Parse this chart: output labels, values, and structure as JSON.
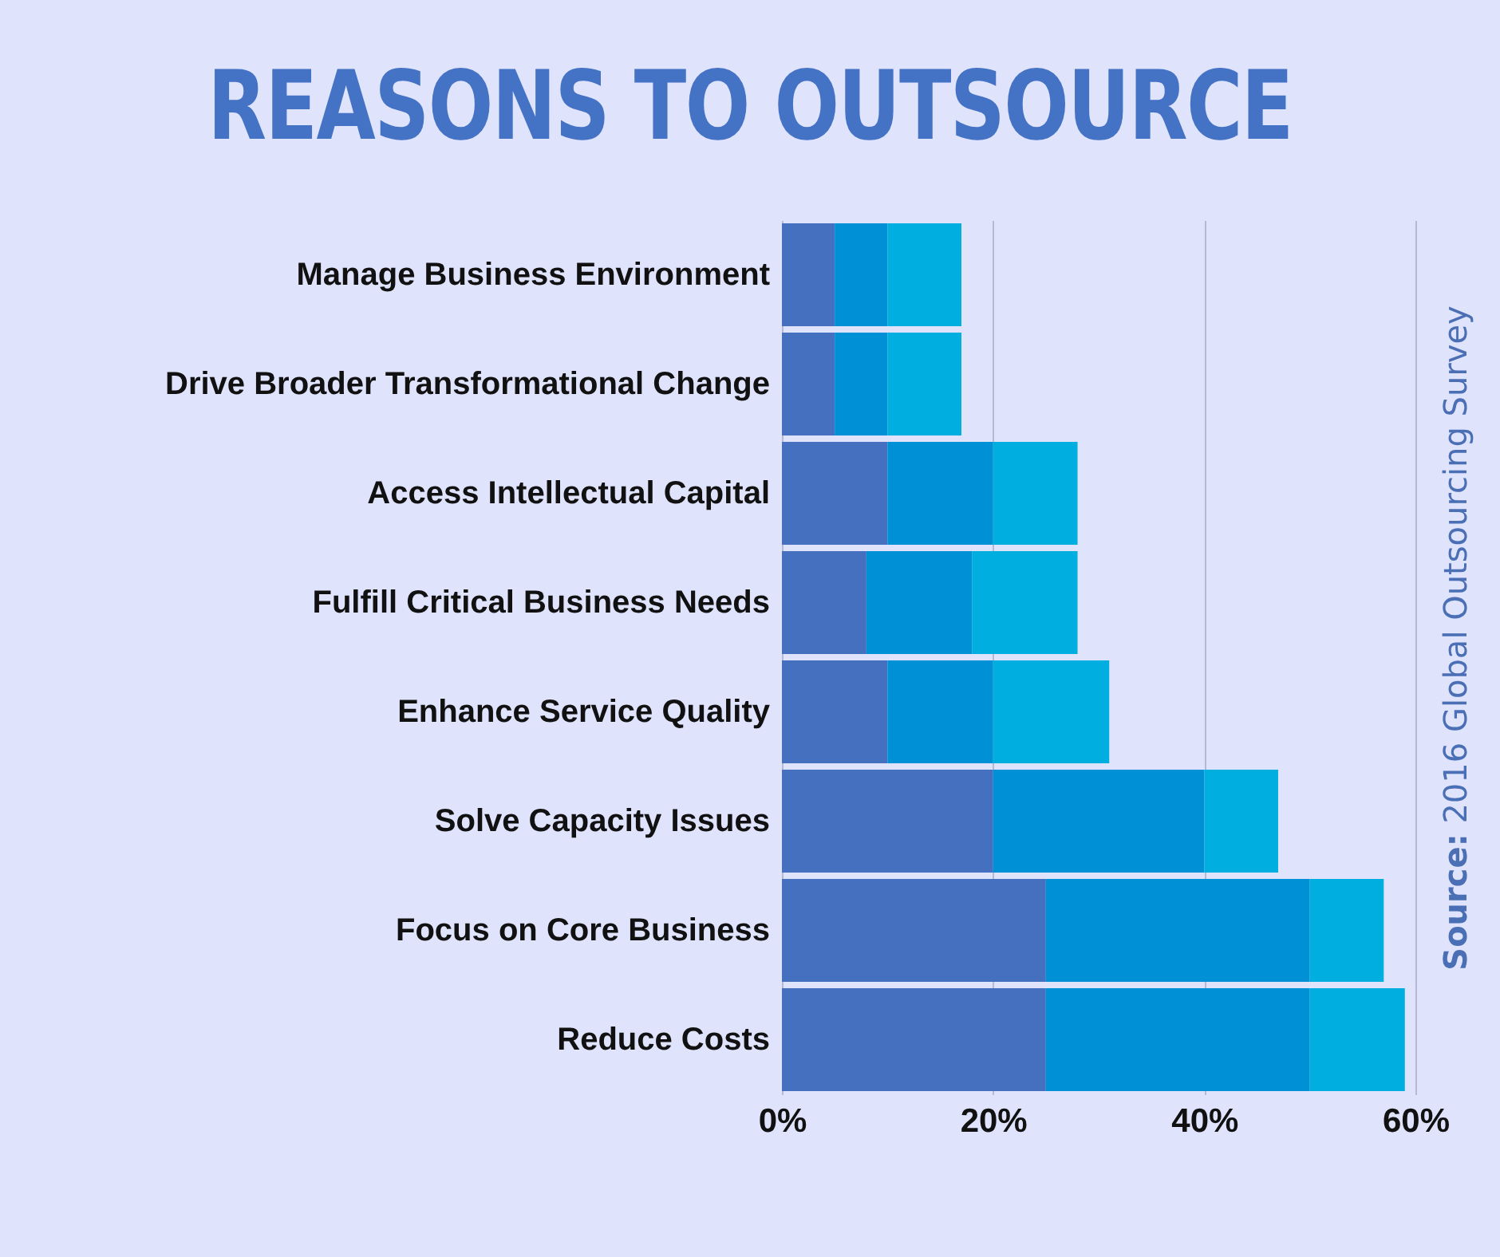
{
  "chart_data": {
    "type": "bar",
    "orientation": "horizontal",
    "stacked": true,
    "title": "REASONS TO OUTSOURCE",
    "categories": [
      "Manage Business Environment",
      "Drive Broader Transformational Change",
      "Access Intellectual Capital",
      "Fulfill Critical Business Needs",
      "Enhance Service Quality",
      "Solve Capacity Issues",
      "Focus on Core Business",
      "Reduce Costs"
    ],
    "series": [
      {
        "color": "#4570bf",
        "values": [
          5,
          5,
          10,
          8,
          10,
          20,
          25,
          25
        ]
      },
      {
        "color": "#0090d5",
        "values": [
          5,
          5,
          10,
          10,
          10,
          20,
          25,
          25
        ]
      },
      {
        "color": "#00aedf",
        "values": [
          7,
          7,
          8,
          10,
          11,
          7,
          7,
          9
        ]
      }
    ],
    "xlim": [
      0,
      60
    ],
    "xticks": [
      {
        "value": 0,
        "label": "0%"
      },
      {
        "value": 20,
        "label": "20%"
      },
      {
        "value": 40,
        "label": "40%"
      },
      {
        "value": 60,
        "label": "60%"
      }
    ],
    "grid": "x",
    "legend": false,
    "annotations": [
      "Source: 2016 Global Outsourcing Survey"
    ]
  }
}
